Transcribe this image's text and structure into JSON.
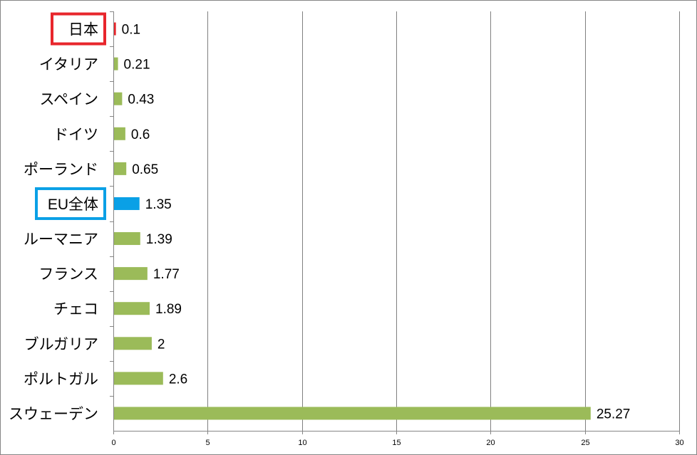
{
  "chart_data": {
    "type": "bar",
    "orientation": "horizontal",
    "categories": [
      "日本",
      "イタリア",
      "スペイン",
      "ドイツ",
      "ポーランド",
      "EU全体",
      "ルーマニア",
      "フランス",
      "チェコ",
      "ブルガリア",
      "ポルトガル",
      "スウェーデン"
    ],
    "values": [
      0.1,
      0.21,
      0.43,
      0.6,
      0.65,
      1.35,
      1.39,
      1.77,
      1.89,
      2,
      2.6,
      25.27
    ],
    "value_labels": [
      "0.1",
      "0.21",
      "0.43",
      "0.6",
      "0.65",
      "1.35",
      "1.39",
      "1.77",
      "1.89",
      "2",
      "2.6",
      "25.27"
    ],
    "xlim": [
      0,
      30
    ],
    "xticks": [
      0,
      5,
      10,
      15,
      20,
      25,
      30
    ],
    "xtick_labels": [
      "0",
      "5",
      "10",
      "15",
      "20",
      "25",
      "30"
    ],
    "grid": "vertical",
    "legend": "none",
    "colors": {
      "default_bar": "#9bbb59",
      "highlight_japan": "#e8262c",
      "highlight_eu": "#0aa0e6",
      "gridline": "#808080",
      "axis": "#868686"
    },
    "highlights": [
      {
        "category": "日本",
        "bar_color": "#e8262c",
        "box_color": "#e8262c"
      },
      {
        "category": "EU全体",
        "bar_color": "#0aa0e6",
        "box_color": "#0aa0e6"
      }
    ]
  }
}
